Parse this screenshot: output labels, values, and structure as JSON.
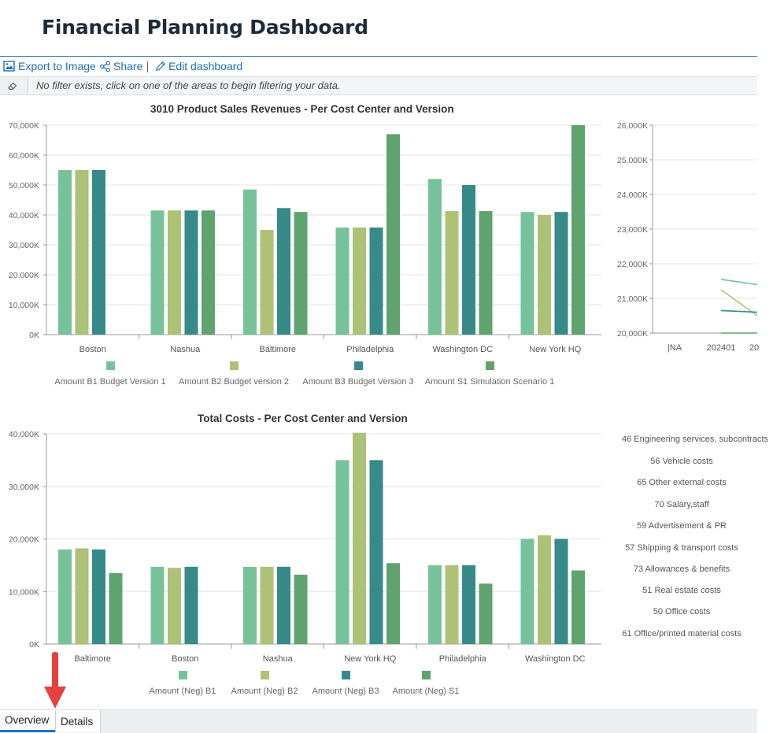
{
  "page": {
    "title": "Financial Planning Dashboard"
  },
  "toolbar": {
    "export_label": "Export to Image",
    "share_label": "Share",
    "edit_label": "Edit dashboard"
  },
  "filter": {
    "message": "No filter exists, click on one of the areas to begin filtering your data."
  },
  "colors": {
    "b1": "#78c29b",
    "b2": "#adc276",
    "b3": "#368a88",
    "s1": "#5fa36e",
    "accent": "#1f6fb2",
    "arrow": "#e8403d"
  },
  "chart_data": [
    {
      "type": "bar",
      "title": "3010 Product Sales Revenues - Per Cost Center and Version",
      "categories": [
        "Boston",
        "Nashua",
        "Baltimore",
        "Philadelphia",
        "Washington DC",
        "New York HQ"
      ],
      "yticks": [
        "0K",
        "10,000K",
        "20,000K",
        "30,000K",
        "40,000K",
        "50,000K",
        "60,000K",
        "70,000K"
      ],
      "ylim": [
        0,
        70000
      ],
      "series": [
        {
          "name": "Amount B1 Budget Version 1",
          "values": [
            55000,
            41500,
            48500,
            35800,
            52000,
            41000
          ]
        },
        {
          "name": "Amount B2 Budget version 2",
          "values": [
            55000,
            41500,
            35000,
            35800,
            41300,
            40000
          ]
        },
        {
          "name": "Amount B3 Budget Version 3",
          "values": [
            55000,
            41500,
            42300,
            35800,
            50000,
            41000
          ]
        },
        {
          "name": "Amount S1 Simulation Scenario 1",
          "values": [
            null,
            41500,
            41000,
            67000,
            41300,
            70000
          ]
        }
      ],
      "legend": "bottom"
    },
    {
      "type": "line",
      "title": "",
      "categories": [
        "|NA",
        "202401",
        "20"
      ],
      "yticks": [
        "20,000K",
        "21,000K",
        "22,000K",
        "23,000K",
        "24,000K",
        "25,000K",
        "26,000K"
      ],
      "ylim": [
        20000,
        26000
      ],
      "series": [
        {
          "values": [
            null,
            21550,
            21400
          ]
        },
        {
          "values": [
            null,
            21250,
            20500
          ]
        },
        {
          "values": [
            null,
            20650,
            20600
          ]
        },
        {
          "values": [
            null,
            20000,
            20000
          ]
        }
      ]
    },
    {
      "type": "bar",
      "title": "Total Costs - Per Cost Center and Version",
      "categories": [
        "Baltimore",
        "Boston",
        "Nashua",
        "New York HQ",
        "Philadelphia",
        "Washington DC"
      ],
      "yticks": [
        "0K",
        "10,000K",
        "20,000K",
        "30,000K",
        "40,000K"
      ],
      "ylim": [
        0,
        40000
      ],
      "series": [
        {
          "name": "Amount (Neg) B1",
          "values": [
            18000,
            14700,
            14700,
            35000,
            15000,
            20000
          ]
        },
        {
          "name": "Amount (Neg) B2",
          "values": [
            18200,
            14500,
            14700,
            40500,
            15000,
            20700
          ]
        },
        {
          "name": "Amount (Neg) B3",
          "values": [
            18000,
            14700,
            14700,
            35000,
            15000,
            20000
          ]
        },
        {
          "name": "Amount (Neg) S1",
          "values": [
            13500,
            null,
            13200,
            15400,
            11500,
            14000
          ]
        }
      ],
      "legend": "bottom"
    }
  ],
  "cost_items": [
    "46 Engineering services, subcontracts",
    "56 Vehicle costs",
    "65 Other external costs",
    "70 Salary,staff",
    "59 Advertisement & PR",
    "57 Shipping & transport costs",
    "73 Allowances & benefits",
    "51 Real estate costs",
    "50 Office costs",
    "61 Office/printed material costs"
  ],
  "tabs": {
    "overview": "Overview",
    "details": "Details"
  }
}
